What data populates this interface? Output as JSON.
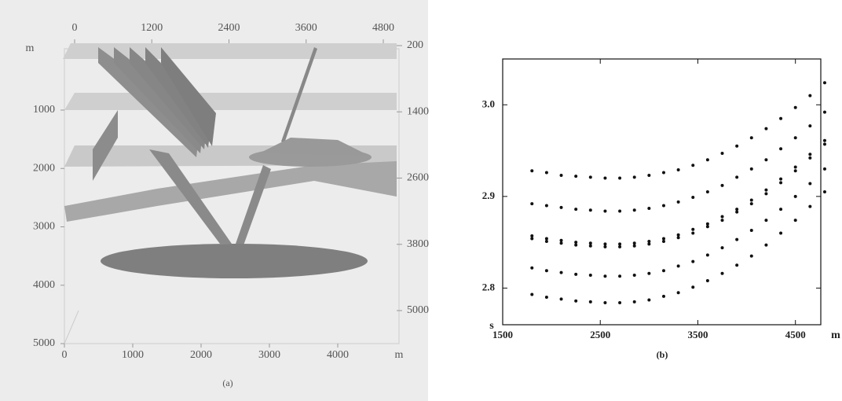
{
  "chart_data": [
    {
      "type": "model3d",
      "caption": "(a)",
      "xlim": [
        0,
        4000
      ],
      "xticks": [
        0,
        1000,
        2000,
        3000,
        4000
      ],
      "x_unit": "m",
      "x2lim": [
        0,
        4800
      ],
      "x2ticks": [
        0,
        1200,
        2400,
        3600,
        4800
      ],
      "ylim": [
        1000,
        5000
      ],
      "yticks": [
        1000,
        2000,
        3000,
        4000,
        5000
      ],
      "y_unit": "m",
      "y2lim": [
        200,
        5000
      ],
      "y2ticks": [
        200,
        1400,
        2600,
        3800,
        5000
      ]
    },
    {
      "type": "scatter",
      "caption": "(b)",
      "x_unit": "m",
      "y_unit": "s",
      "color": "#111111",
      "xlim": [
        1500,
        4760
      ],
      "xticks": [
        1500,
        2500,
        3500,
        4500
      ],
      "ylim": [
        2.76,
        3.05
      ],
      "yticks": [
        2.8,
        2.9,
        {
          "value": 3,
          "label": "3.0"
        }
      ],
      "x": [
        1800,
        1950,
        2100,
        2250,
        2400,
        2550,
        2700,
        2850,
        3000,
        3150,
        3300,
        3450,
        3600,
        3750,
        3900,
        4050,
        4200,
        4350,
        4500,
        4650,
        4800
      ],
      "series": [
        {
          "values": [
            2.928,
            2.926,
            2.923,
            2.922,
            2.921,
            2.92,
            2.92,
            2.921,
            2.923,
            2.926,
            2.929,
            2.934,
            2.94,
            2.947,
            2.955,
            2.964,
            2.974,
            2.985,
            2.997,
            3.01,
            3.024
          ]
        },
        {
          "values": [
            2.892,
            2.89,
            2.888,
            2.886,
            2.885,
            2.884,
            2.884,
            2.885,
            2.887,
            2.89,
            2.894,
            2.899,
            2.905,
            2.912,
            2.921,
            2.93,
            2.94,
            2.952,
            2.964,
            2.977,
            2.992
          ]
        },
        {
          "values": [
            2.857,
            2.854,
            2.852,
            2.85,
            2.849,
            2.848,
            2.848,
            2.849,
            2.851,
            2.854,
            2.858,
            2.864,
            2.87,
            2.878,
            2.886,
            2.896,
            2.907,
            2.919,
            2.932,
            2.946,
            2.961
          ]
        },
        {
          "values": [
            2.854,
            2.851,
            2.849,
            2.847,
            2.846,
            2.845,
            2.845,
            2.846,
            2.848,
            2.851,
            2.855,
            2.86,
            2.867,
            2.874,
            2.883,
            2.892,
            2.903,
            2.915,
            2.928,
            2.942,
            2.957
          ]
        },
        {
          "values": [
            2.822,
            2.819,
            2.817,
            2.815,
            2.814,
            2.813,
            2.813,
            2.814,
            2.816,
            2.819,
            2.824,
            2.829,
            2.836,
            2.844,
            2.853,
            2.863,
            2.874,
            2.886,
            2.9,
            2.914,
            2.93
          ]
        },
        {
          "values": [
            2.793,
            2.79,
            2.788,
            2.786,
            2.785,
            2.784,
            2.784,
            2.785,
            2.787,
            2.791,
            2.795,
            2.801,
            2.808,
            2.816,
            2.825,
            2.835,
            2.847,
            2.86,
            2.874,
            2.889,
            2.905
          ]
        }
      ]
    }
  ]
}
